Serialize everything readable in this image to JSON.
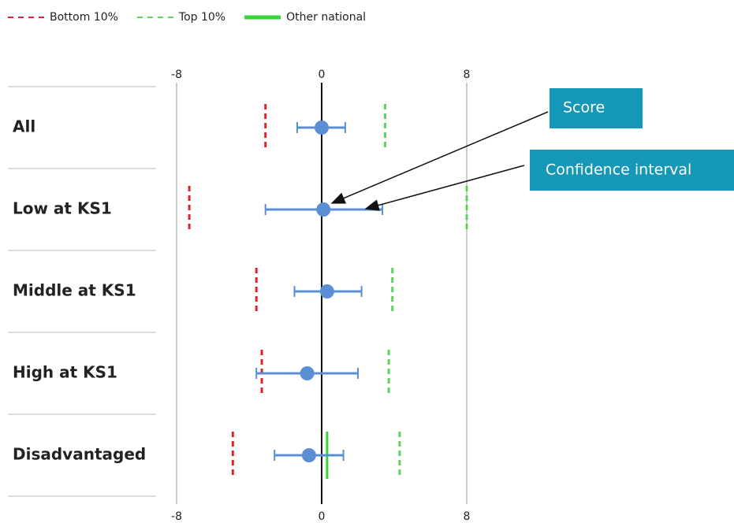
{
  "chart_data": {
    "type": "dotplot",
    "categories": [
      "All",
      "Low at KS1",
      "Middle at KS1",
      "High at KS1",
      "Disadvantaged"
    ],
    "xlim": [
      -8,
      8
    ],
    "xticks": [
      -8,
      0,
      8
    ],
    "grid": true,
    "scores": {
      "color": "#5b8fd4",
      "values": [
        0,
        0.1,
        0.3,
        -0.8,
        -0.7
      ],
      "ci_low": [
        -1.35,
        -3.1,
        -1.5,
        -3.6,
        -2.6
      ],
      "ci_high": [
        1.3,
        3.35,
        2.2,
        2.0,
        1.2
      ]
    },
    "series": [
      {
        "name": "Bottom 10%",
        "color": "#d9262c",
        "style": "dashed",
        "values": [
          -3.1,
          -7.3,
          -3.6,
          -3.3,
          -4.9
        ]
      },
      {
        "name": "Top 10%",
        "color": "#5fd35f",
        "style": "dashed",
        "values": [
          3.5,
          8,
          3.9,
          3.7,
          4.3
        ]
      },
      {
        "name": "Other national",
        "color": "#33d633",
        "style": "solid",
        "values": [
          null,
          null,
          null,
          null,
          0.3
        ]
      }
    ],
    "annotations": [
      {
        "text": "Score"
      },
      {
        "text": "Confidence interval"
      }
    ]
  }
}
